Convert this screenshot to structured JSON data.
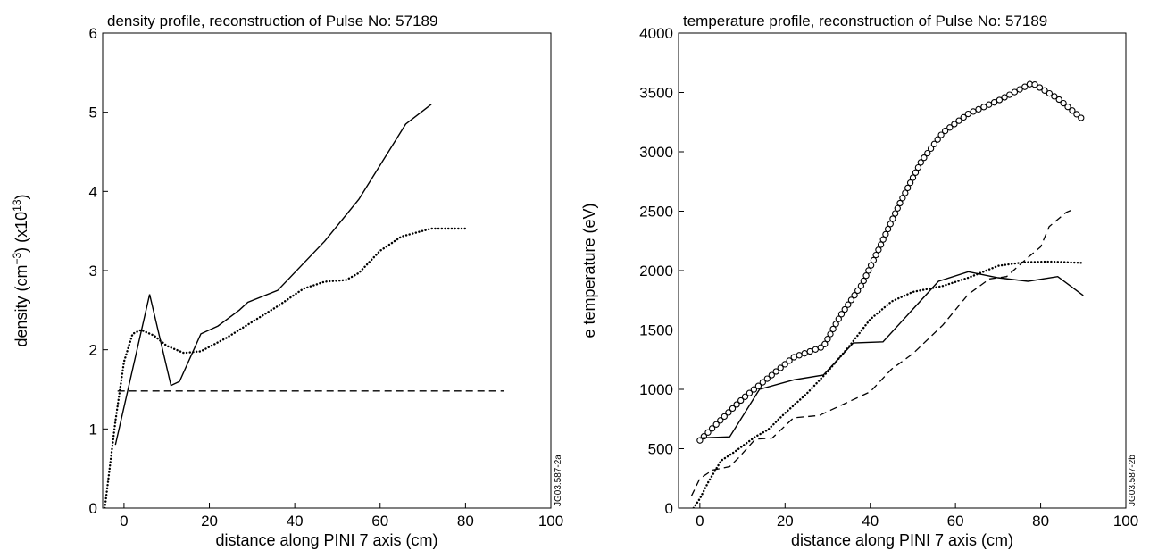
{
  "chart_data": [
    {
      "type": "line",
      "title": "density profile, reconstruction of Pulse No: 57189",
      "xlabel": "distance along PINI 7 axis (cm)",
      "ylabel_parts": [
        "density (cm",
        "−3",
        ") (x10",
        "13",
        ")"
      ],
      "xlim": [
        -5,
        100
      ],
      "ylim": [
        0,
        6
      ],
      "xticks": [
        "0",
        "20",
        "40",
        "60",
        "80",
        "100"
      ],
      "xtick_values": [
        0,
        20,
        40,
        60,
        80,
        100
      ],
      "yticks": [
        "0",
        "1",
        "2",
        "3",
        "4",
        "5",
        "6"
      ],
      "ytick_values": [
        0,
        1,
        2,
        3,
        4,
        5,
        6
      ],
      "figure_code": "JG03.587-2a",
      "series": [
        {
          "style": "solid",
          "x": [
            -2,
            6,
            11,
            13,
            18,
            22,
            27,
            29,
            36,
            47,
            55,
            66,
            72
          ],
          "y": [
            0.8,
            2.7,
            1.55,
            1.6,
            2.2,
            2.3,
            2.5,
            2.6,
            2.75,
            3.37,
            3.9,
            4.85,
            5.1
          ]
        },
        {
          "style": "dotted",
          "x": [
            -4.5,
            -2,
            0,
            2,
            4,
            7,
            10,
            14,
            18,
            24,
            30,
            36,
            42,
            47,
            52,
            55,
            60,
            65,
            72,
            80
          ],
          "y": [
            0,
            1.1,
            1.85,
            2.2,
            2.25,
            2.18,
            2.05,
            1.96,
            1.98,
            2.15,
            2.35,
            2.55,
            2.77,
            2.86,
            2.88,
            2.97,
            3.25,
            3.43,
            3.53,
            3.53
          ]
        },
        {
          "style": "dashed",
          "x": [
            -1.5,
            89
          ],
          "y": [
            1.48,
            1.48
          ]
        }
      ]
    },
    {
      "type": "line",
      "title": "temperature profile, reconstruction of Pulse No: 57189",
      "xlabel": "distance along PINI 7 axis (cm)",
      "ylabel": "e temperature (eV)",
      "xlim": [
        -5,
        100
      ],
      "ylim": [
        0,
        4000
      ],
      "xticks": [
        "0",
        "20",
        "40",
        "60",
        "80",
        "100"
      ],
      "xtick_values": [
        0,
        20,
        40,
        60,
        80,
        100
      ],
      "yticks": [
        "0",
        "500",
        "1000",
        "1500",
        "2000",
        "2500",
        "3000",
        "3500",
        "4000"
      ],
      "ytick_values": [
        0,
        500,
        1000,
        1500,
        2000,
        2500,
        3000,
        3500,
        4000
      ],
      "figure_code": "JG03.587-2b",
      "series": [
        {
          "style": "circles",
          "x": [
            0,
            10,
            22,
            29,
            33,
            38,
            42,
            47,
            52,
            57,
            63,
            70,
            78,
            84,
            90
          ],
          "y": [
            570,
            920,
            1270,
            1360,
            1620,
            1880,
            2180,
            2570,
            2920,
            3160,
            3320,
            3430,
            3580,
            3450,
            3270
          ]
        },
        {
          "style": "solid",
          "x": [
            0,
            7,
            14,
            22,
            29,
            36,
            43,
            56,
            63,
            70,
            77,
            84,
            90
          ],
          "y": [
            590,
            600,
            1000,
            1080,
            1120,
            1390,
            1400,
            1910,
            1990,
            1940,
            1910,
            1950,
            1790
          ]
        },
        {
          "style": "dotted",
          "x": [
            -1.5,
            0,
            2,
            5,
            8,
            13,
            16,
            20,
            25,
            30,
            35,
            40,
            45,
            50,
            57,
            63,
            70,
            76,
            82,
            90
          ],
          "y": [
            0,
            80,
            220,
            400,
            470,
            600,
            660,
            800,
            960,
            1150,
            1360,
            1590,
            1740,
            1820,
            1870,
            1940,
            2040,
            2070,
            2075,
            2065
          ]
        },
        {
          "style": "dashed",
          "x": [
            -2,
            0,
            3,
            7,
            9,
            13,
            17,
            22,
            28,
            34,
            40,
            45,
            50,
            57,
            63,
            68,
            72,
            77,
            80,
            82,
            86,
            88
          ],
          "y": [
            100,
            250,
            320,
            350,
            420,
            580,
            590,
            760,
            780,
            880,
            980,
            1170,
            1300,
            1540,
            1800,
            1930,
            1950,
            2110,
            2200,
            2370,
            2490,
            2520
          ]
        }
      ]
    }
  ]
}
